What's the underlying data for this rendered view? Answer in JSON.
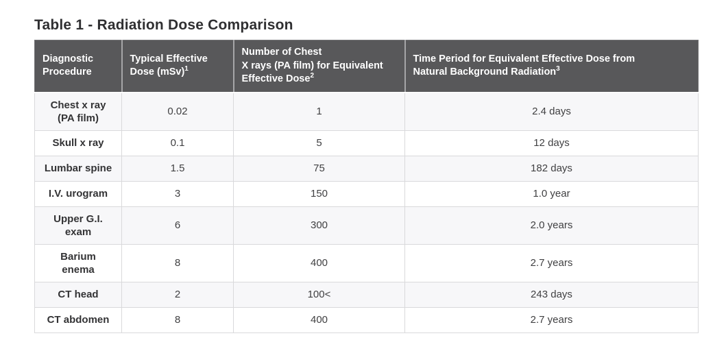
{
  "page": {
    "title": "Table 1 - Radiation Dose Comparison"
  },
  "colors": {
    "header_bg": "#58585a",
    "header_text": "#ffffff",
    "row_stripe_bg": "#f7f7f9",
    "row_bg": "#ffffff",
    "cell_border": "#d9d9db",
    "title_text": "#2f2f31",
    "body_text": "#404042"
  },
  "table": {
    "headers": [
      {
        "line1": "Diagnostic",
        "line2": "Procedure",
        "sup": ""
      },
      {
        "line1": "Typical Effective",
        "line2": "Dose (mSv)",
        "sup": "1"
      },
      {
        "line1": "Number of Chest",
        "line2": "X rays (PA film) for Equivalent Effective Dose",
        "sup": "2"
      },
      {
        "line1": "Time Period for Equivalent Effective Dose from",
        "line2": "Natural Background Radiation",
        "sup": "3"
      }
    ],
    "rows": [
      {
        "procedure": "Chest x ray",
        "procedure2": "(PA film)",
        "dose": "0.02",
        "xrays": "1",
        "period": "2.4 days"
      },
      {
        "procedure": "Skull x ray",
        "procedure2": "",
        "dose": "0.1",
        "xrays": "5",
        "period": "12 days"
      },
      {
        "procedure": "Lumbar spine",
        "procedure2": "",
        "dose": "1.5",
        "xrays": "75",
        "period": "182 days"
      },
      {
        "procedure": "I.V. urogram",
        "procedure2": "",
        "dose": "3",
        "xrays": "150",
        "period": "1.0 year"
      },
      {
        "procedure": "Upper G.I.",
        "procedure2": "exam",
        "dose": "6",
        "xrays": "300",
        "period": "2.0 years"
      },
      {
        "procedure": "Barium",
        "procedure2": "enema",
        "dose": "8",
        "xrays": "400",
        "period": "2.7 years"
      },
      {
        "procedure": "CT head",
        "procedure2": "",
        "dose": "2",
        "xrays": "100<",
        "period": "243 days"
      },
      {
        "procedure": "CT abdomen",
        "procedure2": "",
        "dose": "8",
        "xrays": "400",
        "period": "2.7 years"
      }
    ]
  }
}
